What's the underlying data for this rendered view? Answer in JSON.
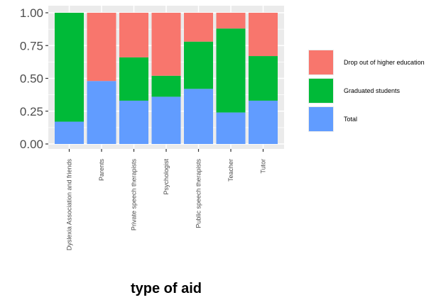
{
  "chart_data": {
    "type": "bar",
    "stacked": true,
    "xlabel": "type of aid",
    "ylabel": "",
    "ylim": [
      0,
      1
    ],
    "yticks": [
      "0.00",
      "0.25",
      "0.50",
      "0.75",
      "1.00"
    ],
    "grid": true,
    "legend_position": "right",
    "categories": [
      "Dyslexia Association and friends",
      "Parents",
      "Private speech therapists",
      "Psychologist",
      "Public speech therapists",
      "Teacher",
      "Tutor"
    ],
    "series": [
      {
        "name": "Total",
        "color": "#619CFF",
        "values": [
          0.17,
          0.48,
          0.33,
          0.36,
          0.42,
          0.24,
          0.33
        ]
      },
      {
        "name": "Graduated students",
        "color": "#00BA38",
        "values": [
          0.83,
          0.0,
          0.33,
          0.16,
          0.36,
          0.64,
          0.34
        ]
      },
      {
        "name": "Drop out of higher education",
        "color": "#F8766D",
        "values": [
          0.0,
          0.52,
          0.34,
          0.48,
          0.22,
          0.12,
          0.33
        ]
      }
    ]
  },
  "colors": {
    "panel_background": "#EBEBEB",
    "grid_line": "#FFFFFF"
  }
}
